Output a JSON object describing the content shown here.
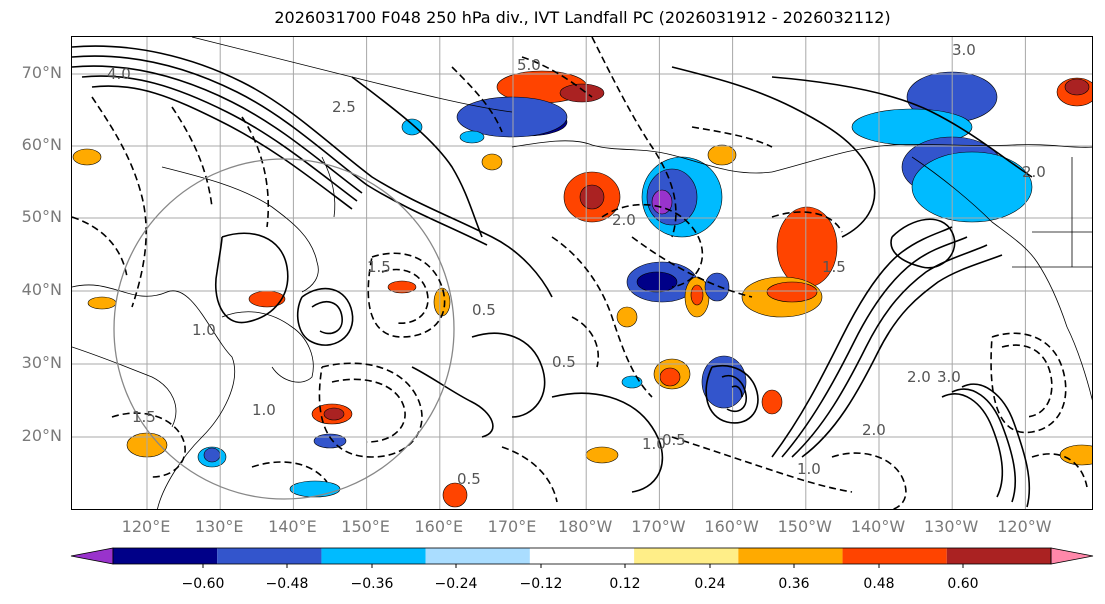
{
  "title": "2026031700 F048 250 hPa div., IVT Landfall PC (2026031912 - 2026032112)",
  "latitude_labels": [
    "70°N",
    "60°N",
    "50°N",
    "40°N",
    "30°N",
    "20°N"
  ],
  "longitude_labels": [
    "120°E",
    "130°E",
    "140°E",
    "150°E",
    "160°E",
    "170°E",
    "180°W",
    "170°W",
    "160°W",
    "150°W",
    "140°W",
    "130°W",
    "120°W"
  ],
  "colorbar": {
    "colors": [
      "#9933cc",
      "#000088",
      "#3355cc",
      "#00bbff",
      "#aaddff",
      "#ffffff",
      "#ffee88",
      "#ffaa00",
      "#ff4400",
      "#aa2222",
      "#ff88aa"
    ],
    "tick_labels": [
      "−0.60",
      "−0.48",
      "−0.36",
      "−0.24",
      "−0.12",
      "0.12",
      "0.24",
      "0.36",
      "0.48",
      "0.60"
    ]
  },
  "contour_labels": [
    "4.0",
    "5.0",
    "2.0",
    "2.5",
    "1.5",
    "0.5",
    "1.0",
    "3.0",
    "2.0",
    "1.5",
    "1.0",
    "0.5",
    "0.5",
    "1.0",
    "2.0",
    "3.0",
    "1.0",
    "0.5",
    "1.5",
    "2.0"
  ]
}
